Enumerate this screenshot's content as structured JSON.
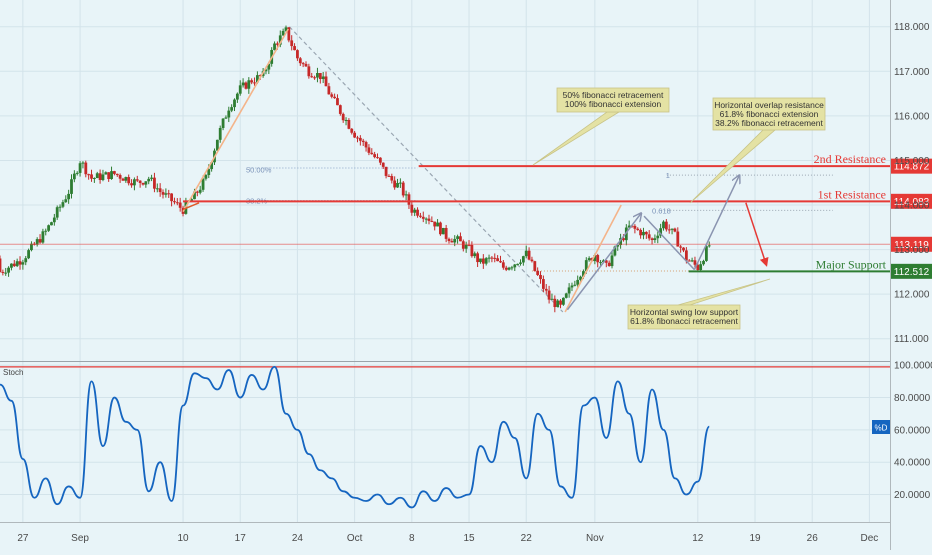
{
  "chart_data": [
    {
      "type": "candlestick",
      "ylim": [
        110.5,
        118.6
      ],
      "y_ticks": [
        111,
        112,
        113,
        114,
        115,
        116,
        117,
        118
      ],
      "y_tick_labels": [
        "111.000",
        "112.000",
        "113.000",
        "114.000",
        "115.000",
        "116.000",
        "117.000",
        "118.000"
      ],
      "x_ticks": [
        {
          "label": "27",
          "t": 0
        },
        {
          "label": "Sep",
          "t": 5
        },
        {
          "label": "10",
          "t": 14
        },
        {
          "label": "17",
          "t": 19
        },
        {
          "label": "24",
          "t": 24
        },
        {
          "label": "Oct",
          "t": 29
        },
        {
          "label": "8",
          "t": 34
        },
        {
          "label": "15",
          "t": 39
        },
        {
          "label": "22",
          "t": 44
        },
        {
          "label": "Nov",
          "t": 50
        },
        {
          "label": "12",
          "t": 59
        },
        {
          "label": "19",
          "t": 64
        },
        {
          "label": "26",
          "t": 69
        },
        {
          "label": "Dec",
          "t": 74
        }
      ],
      "t_range": [
        -2,
        75.8
      ],
      "price_path": [
        [
          0,
          112.8
        ],
        [
          2,
          113.4
        ],
        [
          4,
          114.3
        ],
        [
          5,
          115.0
        ],
        [
          6,
          114.6
        ],
        [
          8,
          114.7
        ],
        [
          10,
          114.5
        ],
        [
          11,
          114.6
        ],
        [
          12,
          114.3
        ],
        [
          13,
          114.1
        ],
        [
          14,
          113.9
        ],
        [
          15,
          114.2
        ],
        [
          16,
          114.6
        ],
        [
          17,
          115.5
        ],
        [
          18,
          116.2
        ],
        [
          19,
          116.6
        ],
        [
          20,
          116.8
        ],
        [
          21,
          116.9
        ],
        [
          22,
          117.6
        ],
        [
          23,
          117.9
        ],
        [
          24,
          117.3
        ],
        [
          25,
          117.0
        ],
        [
          26,
          116.9
        ],
        [
          27,
          116.4
        ],
        [
          28,
          116.0
        ],
        [
          29,
          115.6
        ],
        [
          30,
          115.3
        ],
        [
          31,
          115.0
        ],
        [
          32,
          114.6
        ],
        [
          33,
          114.4
        ],
        [
          34,
          113.9
        ],
        [
          35,
          113.8
        ],
        [
          36,
          113.6
        ],
        [
          37,
          113.3
        ],
        [
          38,
          113.2
        ],
        [
          39,
          113.0
        ],
        [
          40,
          112.7
        ],
        [
          41,
          112.8
        ],
        [
          42,
          112.6
        ],
        [
          43,
          112.7
        ],
        [
          44,
          112.9
        ],
        [
          45,
          112.4
        ],
        [
          46,
          111.9
        ],
        [
          47,
          111.7
        ],
        [
          48,
          112.2
        ],
        [
          49,
          112.6
        ],
        [
          50,
          112.9
        ],
        [
          51,
          112.6
        ],
        [
          52,
          113.1
        ],
        [
          53,
          113.5
        ],
        [
          54,
          113.4
        ],
        [
          55,
          113.2
        ],
        [
          56,
          113.6
        ],
        [
          57,
          113.3
        ],
        [
          58,
          112.8
        ],
        [
          59,
          112.6
        ],
        [
          60,
          113.1
        ]
      ],
      "levels": [
        {
          "name": "2nd Resistance",
          "value": 114.872,
          "label": "114.872",
          "color": "#e53935"
        },
        {
          "name": "1st Resistance",
          "value": 114.083,
          "label": "114.083",
          "color": "#e53935"
        },
        {
          "name": "",
          "value": 113.119,
          "label": "113.119",
          "color": "#e53935"
        },
        {
          "name": "Major Support",
          "value": 112.512,
          "label": "112.512",
          "color": "#2e7d32"
        }
      ],
      "fib_labels": [
        {
          "text": "50.00%",
          "t": 19.5,
          "y": 114.8
        },
        {
          "text": "38.2%",
          "t": 19.5,
          "y": 114.1
        },
        {
          "text": "0.618",
          "t": 55,
          "y": 113.88
        },
        {
          "text": "1",
          "t": 56.2,
          "y": 114.67
        }
      ],
      "annotations": [
        {
          "lines": [
            "50% fibonacci retracement",
            "100% fibonacci extension"
          ]
        },
        {
          "lines": [
            "Horizontal overlap resistance",
            "61.8% fibonacci extension",
            "38.2% fibonacci retracement"
          ]
        },
        {
          "lines": [
            "Horizontal swing low support",
            "61.8% fibonacci retracement"
          ]
        }
      ]
    },
    {
      "type": "line",
      "title": "Stoch",
      "legend": "%D",
      "ylim": [
        3,
        102
      ],
      "y_ticks": [
        20,
        40,
        60,
        80,
        100
      ],
      "y_tick_labels": [
        "20.0000",
        "40.0000",
        "60.0000",
        "80.0000",
        "100.0000"
      ],
      "overbought_level": 99,
      "series": [
        {
          "values": [
            [
              -2,
              88
            ],
            [
              -1,
              78
            ],
            [
              0,
              42
            ],
            [
              1,
              18
            ],
            [
              2,
              30
            ],
            [
              3,
              14
            ],
            [
              4,
              25
            ],
            [
              5,
              18
            ],
            [
              6,
              90
            ],
            [
              7,
              50
            ],
            [
              8,
              80
            ],
            [
              9,
              65
            ],
            [
              10,
              60
            ],
            [
              11,
              22
            ],
            [
              12,
              40
            ],
            [
              13,
              16
            ],
            [
              14,
              75
            ],
            [
              15,
              95
            ],
            [
              16,
              92
            ],
            [
              17,
              85
            ],
            [
              18,
              97
            ],
            [
              19,
              80
            ],
            [
              20,
              94
            ],
            [
              21,
              85
            ],
            [
              22,
              99
            ],
            [
              23,
              70
            ],
            [
              24,
              60
            ],
            [
              25,
              45
            ],
            [
              26,
              35
            ],
            [
              27,
              30
            ],
            [
              28,
              22
            ],
            [
              29,
              18
            ],
            [
              30,
              16
            ],
            [
              31,
              20
            ],
            [
              32,
              14
            ],
            [
              33,
              18
            ],
            [
              34,
              12
            ],
            [
              35,
              22
            ],
            [
              36,
              16
            ],
            [
              37,
              24
            ],
            [
              38,
              18
            ],
            [
              39,
              20
            ],
            [
              40,
              50
            ],
            [
              41,
              40
            ],
            [
              42,
              65
            ],
            [
              43,
              55
            ],
            [
              44,
              30
            ],
            [
              45,
              70
            ],
            [
              46,
              60
            ],
            [
              47,
              25
            ],
            [
              48,
              18
            ],
            [
              49,
              75
            ],
            [
              50,
              80
            ],
            [
              51,
              55
            ],
            [
              52,
              90
            ],
            [
              53,
              70
            ],
            [
              54,
              40
            ],
            [
              55,
              85
            ],
            [
              56,
              60
            ],
            [
              57,
              30
            ],
            [
              58,
              20
            ],
            [
              59,
              28
            ],
            [
              60,
              62
            ]
          ]
        }
      ],
      "x_ticks": [
        "27",
        "Sep",
        "10",
        "17",
        "24",
        "Oct",
        "8",
        "15",
        "22",
        "Nov",
        "12",
        "19",
        "26",
        "Dec"
      ]
    }
  ]
}
